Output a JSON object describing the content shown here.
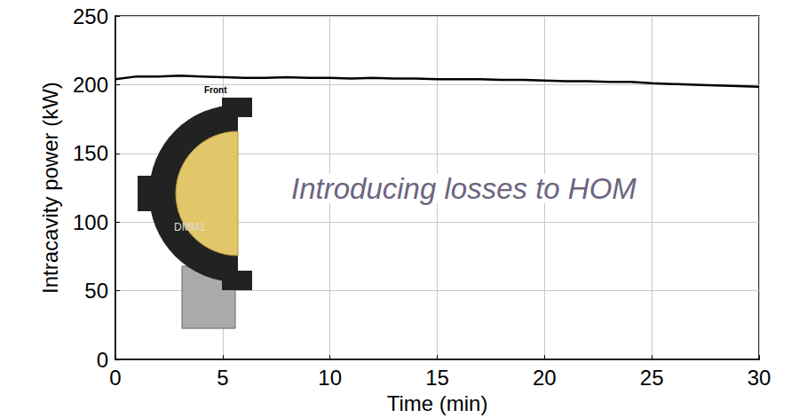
{
  "chart_data": {
    "type": "line",
    "x_label": "Time (min)",
    "y_label": "Intracavity power (kW)",
    "annotations": [
      "Introducing losses to HOM"
    ],
    "inset_labels": [
      "Front",
      "DMM1"
    ],
    "x": [
      0,
      1,
      2,
      3,
      4,
      5,
      6,
      7,
      8,
      9,
      10,
      11,
      12,
      13,
      14,
      15,
      16,
      17,
      18,
      19,
      20,
      21,
      22,
      23,
      24,
      25,
      26,
      27,
      28,
      29,
      30
    ],
    "values": [
      204,
      206,
      206,
      206.5,
      206,
      205.5,
      205,
      205,
      205.5,
      205,
      205,
      204.5,
      205,
      204.5,
      204.5,
      204,
      204,
      204,
      203.5,
      203.5,
      203,
      202.5,
      202.5,
      202,
      202,
      201,
      200.5,
      200,
      199.5,
      199,
      198.5
    ],
    "color": "#000000",
    "xlim": [
      0,
      30
    ],
    "xticks": [
      0,
      5,
      10,
      15,
      20,
      25,
      30
    ],
    "ylim": [
      0,
      250
    ],
    "yticks": [
      0,
      50,
      100,
      150,
      200,
      250
    ],
    "grid": true
  }
}
